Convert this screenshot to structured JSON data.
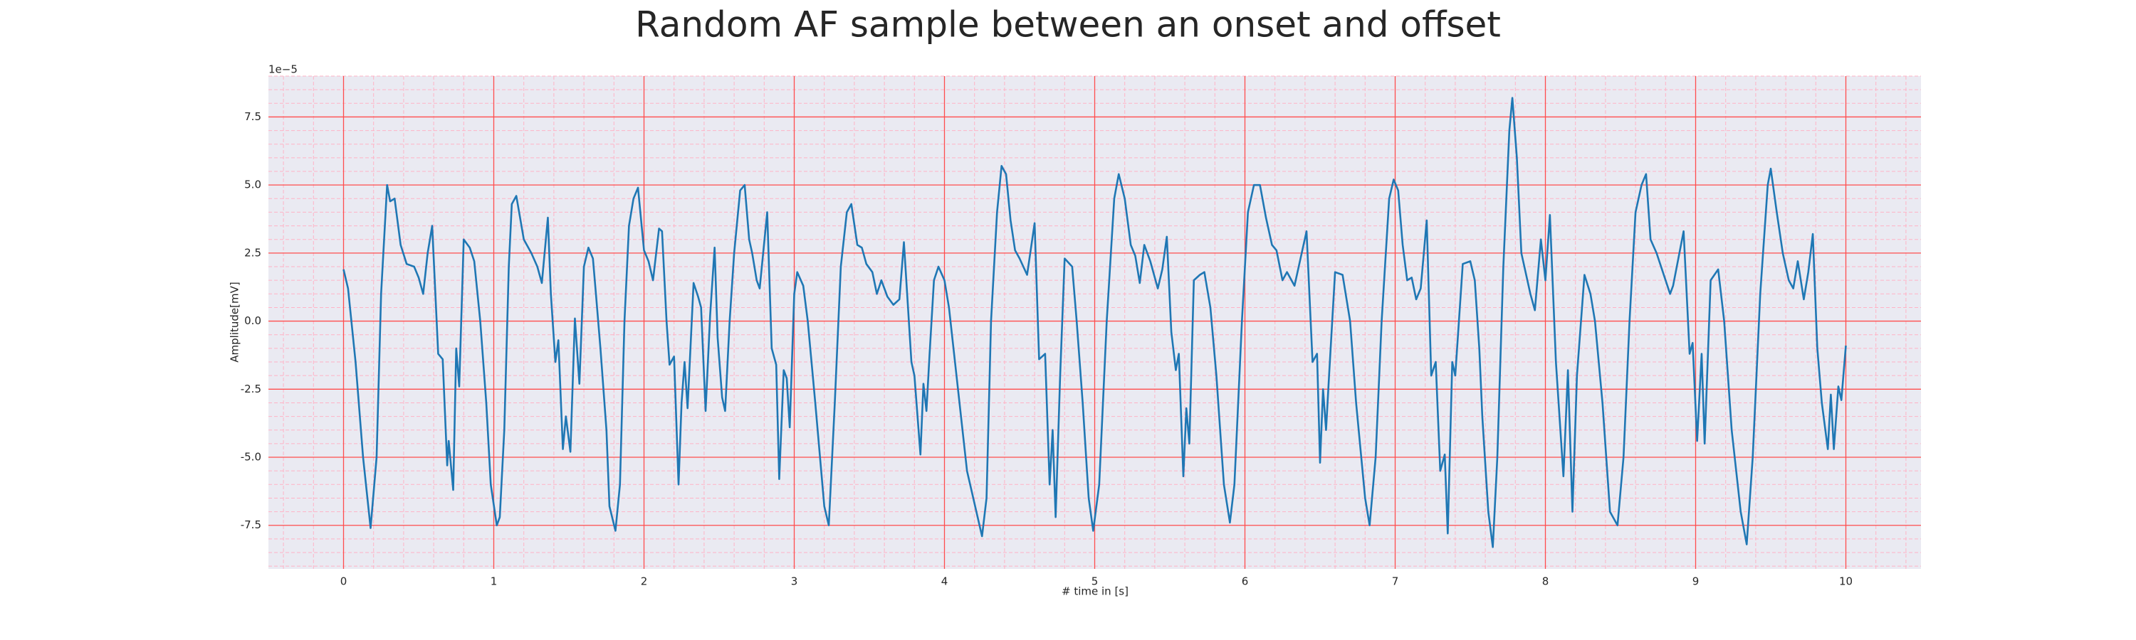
{
  "chart_data": {
    "type": "line",
    "title": "Random AF sample between an onset and offset",
    "x_label": "# time in [s]",
    "y_label": "Amplitude[mV]",
    "y_offset_label": "1e−5",
    "color": "#1f77b4",
    "grid": true,
    "grid_color": "#ff4d4d",
    "minor_grid_color": "#ffb3c6",
    "minor_divisions": 5,
    "background": "#eaeaf2",
    "xlim": [
      -0.5,
      10.5
    ],
    "ylim": [
      -9.1,
      9.0
    ],
    "xticks": [
      0,
      1,
      2,
      3,
      4,
      5,
      6,
      7,
      8,
      9,
      10
    ],
    "yticks": [
      -7.5,
      {
        "value": -5,
        "label": "-5.0"
      },
      -2.5,
      {
        "value": 0,
        "label": "0.0"
      },
      2.5,
      {
        "value": 5,
        "label": "5.0"
      },
      7.5
    ],
    "x": [
      0,
      0.03,
      0.08,
      0.13,
      0.18,
      0.22,
      0.25,
      0.29,
      0.31,
      0.34,
      0.38,
      0.42,
      0.47,
      0.5,
      0.53,
      0.56,
      0.59,
      0.63,
      0.66,
      0.69,
      0.7,
      0.73,
      0.75,
      0.77,
      0.8,
      0.84,
      0.87,
      0.91,
      0.95,
      0.98,
      1.02,
      1.04,
      1.07,
      1.1,
      1.12,
      1.15,
      1.2,
      1.25,
      1.29,
      1.32,
      1.36,
      1.38,
      1.41,
      1.43,
      1.46,
      1.48,
      1.51,
      1.54,
      1.57,
      1.6,
      1.63,
      1.66,
      1.68,
      1.71,
      1.75,
      1.77,
      1.81,
      1.84,
      1.87,
      1.9,
      1.93,
      1.96,
      2.0,
      2.03,
      2.06,
      2.1,
      2.12,
      2.15,
      2.17,
      2.2,
      2.23,
      2.25,
      2.27,
      2.29,
      2.33,
      2.36,
      2.38,
      2.41,
      2.44,
      2.47,
      2.49,
      2.52,
      2.54,
      2.57,
      2.6,
      2.64,
      2.67,
      2.7,
      2.72,
      2.75,
      2.77,
      2.82,
      2.85,
      2.88,
      2.9,
      2.93,
      2.95,
      2.97,
      3.0,
      3.02,
      3.06,
      3.09,
      3.14,
      3.2,
      3.23,
      3.27,
      3.31,
      3.35,
      3.38,
      3.42,
      3.45,
      3.48,
      3.52,
      3.55,
      3.58,
      3.62,
      3.66,
      3.7,
      3.73,
      3.78,
      3.8,
      3.84,
      3.86,
      3.88,
      3.9,
      3.93,
      3.96,
      4.0,
      4.03,
      4.08,
      4.15,
      4.25,
      4.28,
      4.31,
      4.35,
      4.38,
      4.41,
      4.44,
      4.47,
      4.5,
      4.55,
      4.6,
      4.63,
      4.67,
      4.7,
      4.72,
      4.74,
      4.77,
      4.8,
      4.85,
      4.88,
      4.92,
      4.96,
      4.99,
      5.03,
      5.08,
      5.13,
      5.16,
      5.2,
      5.24,
      5.27,
      5.3,
      5.33,
      5.37,
      5.42,
      5.45,
      5.48,
      5.51,
      5.54,
      5.56,
      5.59,
      5.61,
      5.63,
      5.66,
      5.7,
      5.73,
      5.77,
      5.81,
      5.86,
      5.9,
      5.93,
      5.98,
      6.02,
      6.06,
      6.1,
      6.14,
      6.18,
      6.21,
      6.25,
      6.28,
      6.33,
      6.41,
      6.45,
      6.48,
      6.5,
      6.52,
      6.54,
      6.56,
      6.6,
      6.65,
      6.7,
      6.74,
      6.8,
      6.83,
      6.87,
      6.91,
      6.96,
      6.99,
      7.02,
      7.05,
      7.08,
      7.11,
      7.14,
      7.17,
      7.21,
      7.24,
      7.27,
      7.3,
      7.33,
      7.35,
      7.38,
      7.4,
      7.45,
      7.5,
      7.53,
      7.56,
      7.58,
      7.62,
      7.65,
      7.68,
      7.72,
      7.76,
      7.78,
      7.81,
      7.84,
      7.88,
      7.9,
      7.93,
      7.97,
      8.0,
      8.03,
      8.07,
      8.12,
      8.15,
      8.18,
      8.21,
      8.26,
      8.3,
      8.33,
      8.38,
      8.43,
      8.48,
      8.52,
      8.56,
      8.6,
      8.64,
      8.67,
      8.7,
      8.74,
      8.8,
      8.83,
      8.85,
      8.92,
      8.96,
      8.98,
      9.01,
      9.04,
      9.06,
      9.1,
      9.15,
      9.19,
      9.24,
      9.3,
      9.34,
      9.38,
      9.43,
      9.48,
      9.5,
      9.54,
      9.58,
      9.62,
      9.65,
      9.68,
      9.72,
      9.75,
      9.78,
      9.81,
      9.84,
      9.88,
      9.9,
      9.92,
      9.95,
      9.97,
      10.0
    ],
    "values": [
      1.9,
      1.2,
      -1.5,
      -5,
      -7.6,
      -5,
      1,
      5.0,
      4.4,
      4.5,
      2.8,
      2.1,
      2.0,
      1.6,
      1.0,
      2.5,
      3.5,
      -1.2,
      -1.4,
      -5.3,
      -4.4,
      -6.2,
      -1.0,
      -2.4,
      3.0,
      2.7,
      2.2,
      0,
      -3,
      -6.0,
      -7.5,
      -7.2,
      -4,
      2,
      4.3,
      4.6,
      3.0,
      2.5,
      2.0,
      1.4,
      3.8,
      1.0,
      -1.5,
      -0.7,
      -4.7,
      -3.5,
      -4.8,
      0.1,
      -2.3,
      2.0,
      2.7,
      2.3,
      1.0,
      -1,
      -4,
      -6.8,
      -7.7,
      -6,
      0,
      3.5,
      4.5,
      4.9,
      2.6,
      2.2,
      1.5,
      3.4,
      3.3,
      0,
      -1.6,
      -1.3,
      -6.0,
      -3,
      -1.5,
      -3.2,
      1.4,
      0.9,
      0.5,
      -3.3,
      0.2,
      2.7,
      -0.6,
      -2.8,
      -3.3,
      0,
      2.5,
      4.8,
      5.0,
      3,
      2.5,
      1.5,
      1.2,
      4.0,
      -1,
      -1.6,
      -5.8,
      -1.8,
      -2.1,
      -3.9,
      1.0,
      1.8,
      1.3,
      0,
      -3,
      -6.8,
      -7.5,
      -3,
      2,
      4.0,
      4.3,
      2.8,
      2.7,
      2.1,
      1.8,
      1.0,
      1.5,
      0.9,
      0.6,
      0.8,
      2.9,
      -1.5,
      -2.0,
      -4.9,
      -2.3,
      -3.3,
      -1.3,
      1.5,
      2.0,
      1.5,
      0.5,
      -2,
      -5.5,
      -7.9,
      -6.5,
      0,
      4,
      5.7,
      5.4,
      3.7,
      2.6,
      2.3,
      1.7,
      3.6,
      -1.4,
      -1.2,
      -6.0,
      -4,
      -7.2,
      -2,
      2.3,
      2.0,
      0,
      -3,
      -6.5,
      -7.7,
      -6,
      0,
      4.5,
      5.4,
      4.5,
      2.8,
      2.4,
      1.4,
      2.8,
      2.2,
      1.2,
      1.9,
      3.1,
      -0.4,
      -1.8,
      -1.2,
      -5.7,
      -3.2,
      -4.5,
      1.5,
      1.7,
      1.8,
      0.5,
      -2,
      -6,
      -7.4,
      -6,
      0,
      4,
      5.0,
      5.0,
      3.8,
      2.8,
      2.6,
      1.5,
      1.8,
      1.3,
      3.3,
      -1.5,
      -1.2,
      -5.2,
      -2.5,
      -4.0,
      -2.0,
      1.8,
      1.7,
      0,
      -3,
      -6.5,
      -7.5,
      -5,
      0,
      4.5,
      5.2,
      4.8,
      2.8,
      1.5,
      1.6,
      0.8,
      1.2,
      3.7,
      -2.0,
      -1.5,
      -5.5,
      -4.9,
      -7.8,
      -1.5,
      -2.0,
      2.1,
      2.2,
      1.5,
      -1,
      -3.5,
      -7,
      -8.3,
      -5,
      2,
      7.0,
      8.2,
      6,
      2.5,
      1.5,
      1.0,
      0.4,
      3.0,
      1.5,
      3.9,
      -1.5,
      -5.7,
      -1.8,
      -7,
      -2,
      1.7,
      1.0,
      0,
      -3,
      -7.0,
      -7.5,
      -5,
      0,
      4,
      5.0,
      5.4,
      3,
      2.5,
      1.5,
      1.0,
      1.3,
      3.3,
      -1.2,
      -0.8,
      -4.4,
      -1.2,
      -4.5,
      1.5,
      1.9,
      0,
      -4,
      -7,
      -8.2,
      -5,
      1,
      5.0,
      5.6,
      4.0,
      2.5,
      1.5,
      1.2,
      2.2,
      0.8,
      1.8,
      3.2,
      -1,
      -3,
      -4.7,
      -2.7,
      -4.7,
      -2.4,
      -2.9,
      -0.9
    ]
  }
}
